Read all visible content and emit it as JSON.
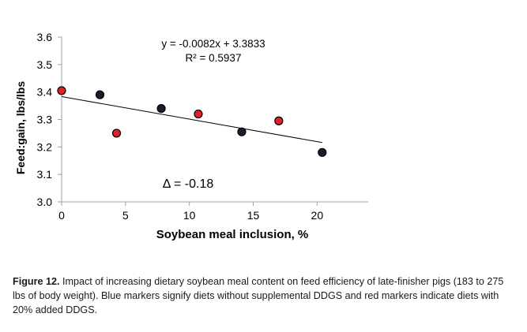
{
  "chart_data": {
    "type": "scatter",
    "xlabel": "Soybean meal inclusion, %",
    "ylabel": "Feed:gain, lbs/lbs",
    "xlim": [
      0,
      24
    ],
    "ylim": [
      3.0,
      3.6
    ],
    "xticks": [
      0,
      5,
      10,
      15,
      20
    ],
    "yticks": [
      3.0,
      3.1,
      3.2,
      3.3,
      3.4,
      3.5,
      3.6
    ],
    "ytick_labels": [
      "3.0",
      "3.1",
      "3.2",
      "3.3",
      "3.4",
      "3.5",
      "3.6"
    ],
    "grid": false,
    "series": [
      {
        "color": "#1c1c2e",
        "points": [
          [
            3.0,
            3.39
          ],
          [
            7.8,
            3.34
          ],
          [
            14.1,
            3.255
          ],
          [
            20.4,
            3.18
          ]
        ]
      },
      {
        "color": "#e0202a",
        "points": [
          [
            0.0,
            3.405
          ],
          [
            4.3,
            3.25
          ],
          [
            10.7,
            3.32
          ],
          [
            17.0,
            3.295
          ]
        ]
      }
    ],
    "trendline": {
      "slope": -0.0082,
      "intercept": 3.3833,
      "x_range": [
        0,
        20.4
      ]
    },
    "annotations": {
      "equation": "y = -0.0082x + 3.3833",
      "r_squared": "R² = 0.5937",
      "delta": "Δ = -0.18"
    }
  },
  "caption": {
    "label": "Figure 12.",
    "text": " Impact of increasing dietary soybean meal content on feed efficiency of late-finisher pigs (183 to 275 lbs of body weight). Blue markers signify diets without supplemental DDGS and red markers indicate diets with 20% added DDGS."
  }
}
